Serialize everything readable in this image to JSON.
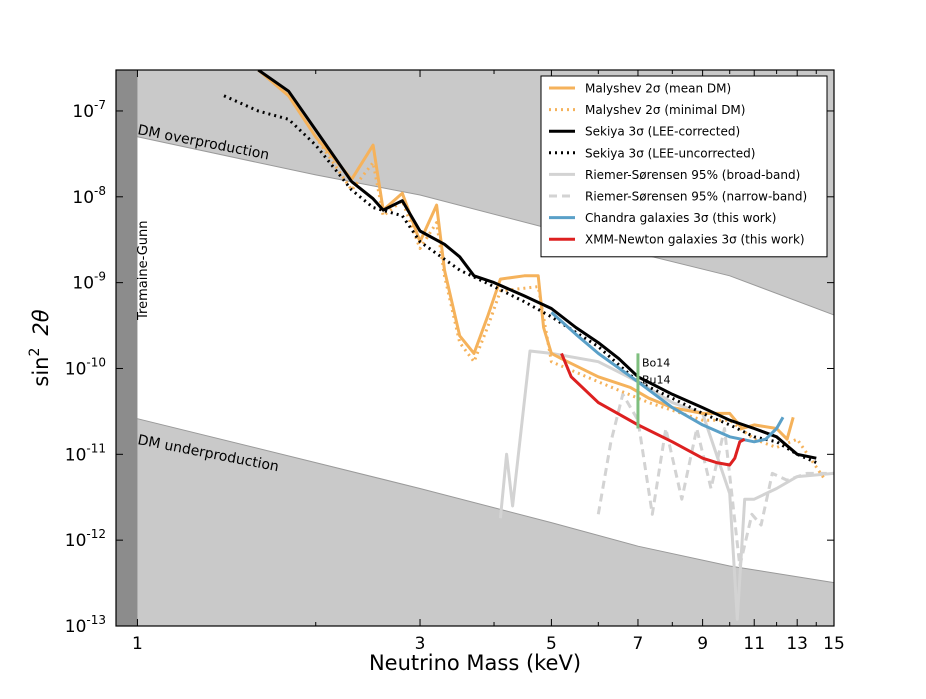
{
  "chart_data": {
    "type": "line",
    "title": "",
    "xlabel": "Neutrino Mass (keV)",
    "ylabel_main": "sin",
    "ylabel_sup": "2",
    "ylabel_theta": "2θ",
    "x_scale": "log",
    "y_scale": "log",
    "xlim": [
      0.92,
      15
    ],
    "ylim": [
      1e-13,
      3e-07
    ],
    "x_ticks": [
      {
        "value": 1,
        "label": "1"
      },
      {
        "value": 3,
        "label": "3"
      },
      {
        "value": 5,
        "label": "5"
      },
      {
        "value": 7,
        "label": "7"
      },
      {
        "value": 9,
        "label": "9"
      },
      {
        "value": 11,
        "label": "11"
      },
      {
        "value": 13,
        "label": "13"
      },
      {
        "value": 15,
        "label": "15"
      }
    ],
    "y_ticks": [
      {
        "value": 1e-13,
        "mantissa": "10",
        "exp": "-13"
      },
      {
        "value": 1e-12,
        "mantissa": "10",
        "exp": "-12"
      },
      {
        "value": 1e-11,
        "mantissa": "10",
        "exp": "-11"
      },
      {
        "value": 1e-10,
        "mantissa": "10",
        "exp": "-10"
      },
      {
        "value": 1e-09,
        "mantissa": "10",
        "exp": "-9"
      },
      {
        "value": 1e-08,
        "mantissa": "10",
        "exp": "-8"
      },
      {
        "value": 1e-07,
        "mantissa": "10",
        "exp": "-7"
      }
    ],
    "regions": {
      "overproduction": {
        "label": "DM overproduction",
        "boundary": [
          [
            0.92,
            6e-08
          ],
          [
            1,
            5e-08
          ],
          [
            2,
            1.8e-08
          ],
          [
            3,
            1.05e-08
          ],
          [
            5,
            4.2e-09
          ],
          [
            7,
            2.2e-09
          ],
          [
            10,
            1.2e-09
          ],
          [
            15,
            4.2e-10
          ]
        ]
      },
      "underproduction": {
        "label": "DM underproduction",
        "boundary": [
          [
            0.92,
            3.5e-11
          ],
          [
            1,
            2.6e-11
          ],
          [
            2,
            8e-12
          ],
          [
            3,
            4e-12
          ],
          [
            5,
            1.6e-12
          ],
          [
            7,
            8.5e-13
          ],
          [
            10,
            5e-13
          ],
          [
            15,
            3.2e-13
          ]
        ]
      },
      "tremaine_gunn": {
        "label": "Tremaine-Gunn",
        "x_min": 0.92,
        "x_max": 1.0
      }
    },
    "vertical_marker": {
      "x": 7.0,
      "y_range": [
        2e-11,
        1.5e-10
      ],
      "labels": [
        "Bo14",
        "Bu14"
      ],
      "color": "#7fbf7f"
    },
    "series": [
      {
        "name": "Malyshev 2σ (mean DM)",
        "color": "#f5b25b",
        "style": "solid",
        "points": [
          [
            1.6,
            3e-07
          ],
          [
            1.8,
            1.5e-07
          ],
          [
            2.0,
            5e-08
          ],
          [
            2.3,
            1.6e-08
          ],
          [
            2.5,
            4e-08
          ],
          [
            2.6,
            7e-09
          ],
          [
            2.8,
            1.1e-08
          ],
          [
            3.0,
            3e-09
          ],
          [
            3.2,
            8e-09
          ],
          [
            3.3,
            1.4e-09
          ],
          [
            3.5,
            2.4e-10
          ],
          [
            3.7,
            1.5e-10
          ],
          [
            3.9,
            4e-10
          ],
          [
            4.1,
            1.1e-09
          ],
          [
            4.5,
            1.2e-09
          ],
          [
            4.75,
            1.2e-09
          ],
          [
            4.85,
            3e-10
          ],
          [
            5.0,
            1.5e-10
          ],
          [
            5.2,
            1.3e-10
          ],
          [
            6.0,
            8e-11
          ],
          [
            6.8,
            6e-11
          ],
          [
            7.3,
            4.5e-11
          ],
          [
            8.0,
            3.5e-11
          ],
          [
            9.0,
            3e-11
          ],
          [
            10.0,
            3e-11
          ],
          [
            10.5,
            2e-11
          ],
          [
            11.0,
            2.2e-11
          ],
          [
            12.0,
            2e-11
          ],
          [
            12.5,
            1.5e-11
          ],
          [
            12.8,
            2.7e-11
          ]
        ]
      },
      {
        "name": "Malyshev 2σ (minimal DM)",
        "color": "#f5b25b",
        "style": "dotted",
        "points": [
          [
            2.0,
            5e-08
          ],
          [
            2.3,
            1.2e-08
          ],
          [
            2.5,
            2.5e-08
          ],
          [
            2.6,
            6e-09
          ],
          [
            2.8,
            9e-09
          ],
          [
            3.0,
            2.5e-09
          ],
          [
            3.2,
            5e-09
          ],
          [
            3.3,
            1.2e-09
          ],
          [
            3.5,
            2e-10
          ],
          [
            3.7,
            1.2e-10
          ],
          [
            3.9,
            3e-10
          ],
          [
            4.1,
            8e-10
          ],
          [
            4.75,
            9e-10
          ],
          [
            5.0,
            1.2e-10
          ],
          [
            6.0,
            7e-11
          ],
          [
            7.3,
            4e-11
          ],
          [
            9.0,
            2.5e-11
          ],
          [
            10.0,
            2.5e-11
          ],
          [
            11.0,
            1.5e-11
          ],
          [
            12.0,
            1.2e-11
          ],
          [
            13.0,
            1.5e-11
          ],
          [
            14.5,
            5e-12
          ]
        ]
      },
      {
        "name": "Sekiya 3σ (LEE-corrected)",
        "color": "#000000",
        "style": "solid",
        "points": [
          [
            1.6,
            3e-07
          ],
          [
            1.8,
            1.7e-07
          ],
          [
            2.0,
            6e-08
          ],
          [
            2.3,
            1.5e-08
          ],
          [
            2.5,
            9.5e-09
          ],
          [
            2.6,
            7e-09
          ],
          [
            2.8,
            9e-09
          ],
          [
            3.0,
            4e-09
          ],
          [
            3.3,
            2.8e-09
          ],
          [
            3.5,
            2e-09
          ],
          [
            3.7,
            1.2e-09
          ],
          [
            4.0,
            1e-09
          ],
          [
            4.5,
            7e-10
          ],
          [
            5.0,
            5e-10
          ],
          [
            5.5,
            3e-10
          ],
          [
            6.0,
            2e-10
          ],
          [
            6.5,
            1.3e-10
          ],
          [
            7.0,
            8e-11
          ],
          [
            8.0,
            5e-11
          ],
          [
            9.0,
            3.5e-11
          ],
          [
            10.0,
            2.5e-11
          ],
          [
            11.0,
            2e-11
          ],
          [
            12.0,
            1.6e-11
          ],
          [
            13.0,
            1e-11
          ],
          [
            14.0,
            9e-12
          ]
        ]
      },
      {
        "name": "Sekiya 3σ (LEE-uncorrected)",
        "color": "#000000",
        "style": "dotted",
        "points": [
          [
            1.4,
            1.5e-07
          ],
          [
            1.6,
            1e-07
          ],
          [
            1.8,
            8e-08
          ],
          [
            2.0,
            4e-08
          ],
          [
            2.3,
            1.2e-08
          ],
          [
            2.5,
            7.5e-09
          ],
          [
            2.8,
            6e-09
          ],
          [
            3.0,
            3e-09
          ],
          [
            3.5,
            1.4e-09
          ],
          [
            4.0,
            9e-10
          ],
          [
            4.5,
            6e-10
          ],
          [
            5.0,
            4e-10
          ],
          [
            6.0,
            1.8e-10
          ],
          [
            7.0,
            7e-11
          ],
          [
            8.0,
            4.5e-11
          ],
          [
            9.0,
            3e-11
          ],
          [
            10.0,
            2.2e-11
          ],
          [
            11.0,
            1.6e-11
          ],
          [
            12.0,
            1.4e-11
          ],
          [
            13.0,
            1e-11
          ],
          [
            14.0,
            8e-12
          ]
        ]
      },
      {
        "name": "Riemer-Sørensen 95% (broad-band)",
        "color": "#d3d3d3",
        "style": "solid",
        "points": [
          [
            4.1,
            1.8e-12
          ],
          [
            4.2,
            1e-11
          ],
          [
            4.3,
            2.5e-12
          ],
          [
            4.6,
            1.6e-10
          ],
          [
            5.0,
            1.5e-10
          ],
          [
            6.0,
            1.2e-10
          ],
          [
            7.0,
            7e-11
          ],
          [
            8.0,
            4e-11
          ],
          [
            9.0,
            3e-11
          ],
          [
            10.0,
            3.5e-12
          ],
          [
            10.3,
            1.2e-13
          ],
          [
            10.6,
            3e-12
          ],
          [
            11.0,
            3e-12
          ],
          [
            12.0,
            4e-12
          ],
          [
            13.0,
            5.5e-12
          ],
          [
            15.0,
            6e-12
          ]
        ]
      },
      {
        "name": "Riemer-Sørensen 95% (narrow-band)",
        "color": "#d3d3d3",
        "style": "dashed",
        "points": [
          [
            6.0,
            2e-12
          ],
          [
            6.3,
            1.4e-11
          ],
          [
            6.6,
            5e-11
          ],
          [
            7.0,
            2.5e-11
          ],
          [
            7.4,
            2e-12
          ],
          [
            7.8,
            2e-11
          ],
          [
            8.3,
            3e-12
          ],
          [
            8.8,
            2e-11
          ],
          [
            9.3,
            4e-12
          ],
          [
            9.8,
            2e-11
          ],
          [
            10.4,
            5e-13
          ],
          [
            10.9,
            2e-12
          ],
          [
            11.3,
            1.5e-12
          ],
          [
            11.8,
            6e-12
          ],
          [
            12.5,
            5e-12
          ],
          [
            13.5,
            6e-12
          ],
          [
            15.0,
            6e-12
          ]
        ]
      },
      {
        "name": "Chandra galaxies 3σ (this work)",
        "color": "#5aa0c8",
        "style": "solid",
        "points": [
          [
            5.0,
            4.5e-10
          ],
          [
            5.5,
            2.5e-10
          ],
          [
            6.0,
            1.5e-10
          ],
          [
            7.0,
            7e-11
          ],
          [
            8.0,
            3.5e-11
          ],
          [
            9.0,
            2.2e-11
          ],
          [
            10.0,
            1.6e-11
          ],
          [
            11.0,
            1.4e-11
          ],
          [
            11.5,
            1.5e-11
          ],
          [
            12.0,
            2e-11
          ],
          [
            12.3,
            2.7e-11
          ]
        ]
      },
      {
        "name": "XMM-Newton galaxies 3σ (this work)",
        "color": "#dd2020",
        "style": "solid",
        "points": [
          [
            5.2,
            1.5e-10
          ],
          [
            5.4,
            8e-11
          ],
          [
            6.0,
            4e-11
          ],
          [
            7.0,
            2.2e-11
          ],
          [
            8.0,
            1.4e-11
          ],
          [
            9.0,
            9e-12
          ],
          [
            9.5,
            8e-12
          ],
          [
            10.0,
            7.5e-12
          ],
          [
            10.2,
            9e-12
          ],
          [
            10.4,
            1.4e-11
          ],
          [
            10.6,
            1.5e-11
          ]
        ]
      }
    ]
  }
}
